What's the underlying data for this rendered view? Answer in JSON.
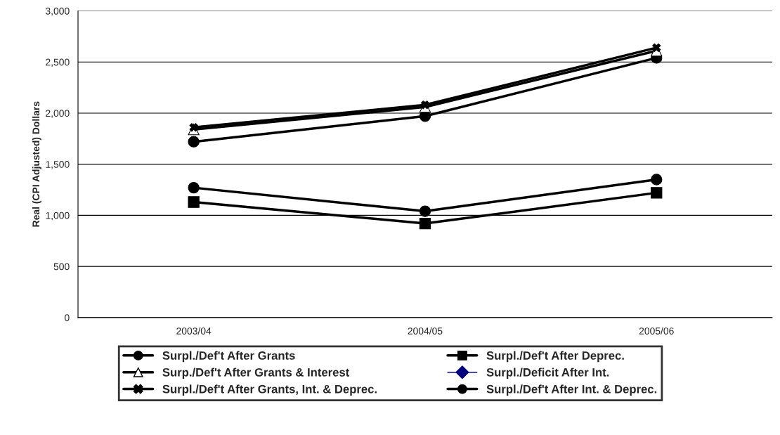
{
  "chart_data": {
    "type": "line",
    "ylabel": "Real (CPI Adjusted) Dollars",
    "categories": [
      "2003/04",
      "2004/05",
      "2005/06"
    ],
    "ylim": [
      0,
      3000
    ],
    "yticks": [
      {
        "value": 0,
        "label": "0"
      },
      {
        "value": 500,
        "label": "500"
      },
      {
        "value": 1000,
        "label": "1,000"
      },
      {
        "value": 1500,
        "label": "1,500"
      },
      {
        "value": 2000,
        "label": "2,000"
      },
      {
        "value": 2500,
        "label": "2,500"
      },
      {
        "value": 3000,
        "label": "3,000"
      }
    ],
    "grid": "y",
    "legend": "bottom",
    "line_style": "solid",
    "series": [
      {
        "name": "Surpl./Def't After Grants",
        "color": "#000000",
        "marker": "circle",
        "values": [
          1720,
          1970,
          2540
        ]
      },
      {
        "name": "Surpl./Def't After Deprec.",
        "color": "#000000",
        "marker": "square",
        "values": [
          1130,
          920,
          1220
        ]
      },
      {
        "name": "Surp./Def't After Grants & Interest",
        "color": "#000000",
        "marker": "triangle",
        "values": [
          1840,
          2060,
          2610
        ]
      },
      {
        "name": "Surpl./Deficit After Int.",
        "color": "#000080",
        "marker": "diamond",
        "values": [
          null,
          null,
          null
        ]
      },
      {
        "name": "Surpl./Def't After Grants, Int. & Deprec.",
        "color": "#000000",
        "marker": "cross",
        "values": [
          1860,
          2080,
          2640
        ]
      },
      {
        "name": "Surpl./Def't After Int. & Deprec.",
        "color": "#000000",
        "marker": "circle",
        "values": [
          1270,
          1040,
          1350
        ]
      }
    ]
  }
}
